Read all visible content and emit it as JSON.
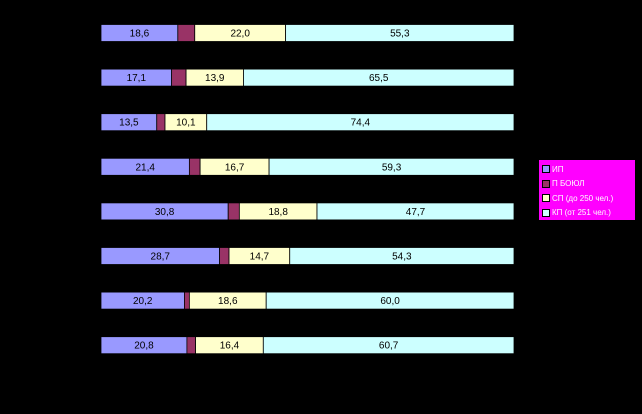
{
  "chart_data": {
    "type": "bar",
    "stacked": "percent",
    "orientation": "horizontal",
    "title": "",
    "xlabel": "",
    "ylabel": "",
    "xlim": [
      0,
      100
    ],
    "grid": false,
    "legend_position": "right",
    "categories": [
      "",
      "",
      "",
      "",
      "",
      "",
      "",
      ""
    ],
    "series": [
      {
        "name": "ИП",
        "color": "#9999FF",
        "values": [
          18.6,
          17.1,
          13.5,
          21.4,
          30.8,
          28.7,
          20.2,
          20.8
        ],
        "labels": [
          "18,6",
          "17,1",
          "13,5",
          "21,4",
          "30,8",
          "28,7",
          "20,2",
          "20,8"
        ]
      },
      {
        "name": "П БОЮЛ",
        "color": "#993366",
        "values": [
          4.1,
          3.5,
          2.0,
          2.6,
          2.7,
          2.3,
          1.2,
          2.1
        ],
        "labels": [
          "",
          "",
          "",
          "",
          "",
          "",
          "",
          ""
        ]
      },
      {
        "name": "СП (до 250 чел.)",
        "color": "#FFFFCC",
        "values": [
          22.0,
          13.9,
          10.1,
          16.7,
          18.8,
          14.7,
          18.6,
          16.4
        ],
        "labels": [
          "22,0",
          "13,9",
          "10,1",
          "16,7",
          "18,8",
          "14,7",
          "18,6",
          "16,4"
        ]
      },
      {
        "name": "КП (от 251 чел.)",
        "color": "#CCFFFF",
        "values": [
          55.3,
          65.5,
          74.4,
          59.3,
          47.7,
          54.3,
          60.0,
          60.7
        ],
        "labels": [
          "55,3",
          "65,5",
          "74,4",
          "59,3",
          "47,7",
          "54,3",
          "60,0",
          "60,7"
        ]
      }
    ]
  }
}
